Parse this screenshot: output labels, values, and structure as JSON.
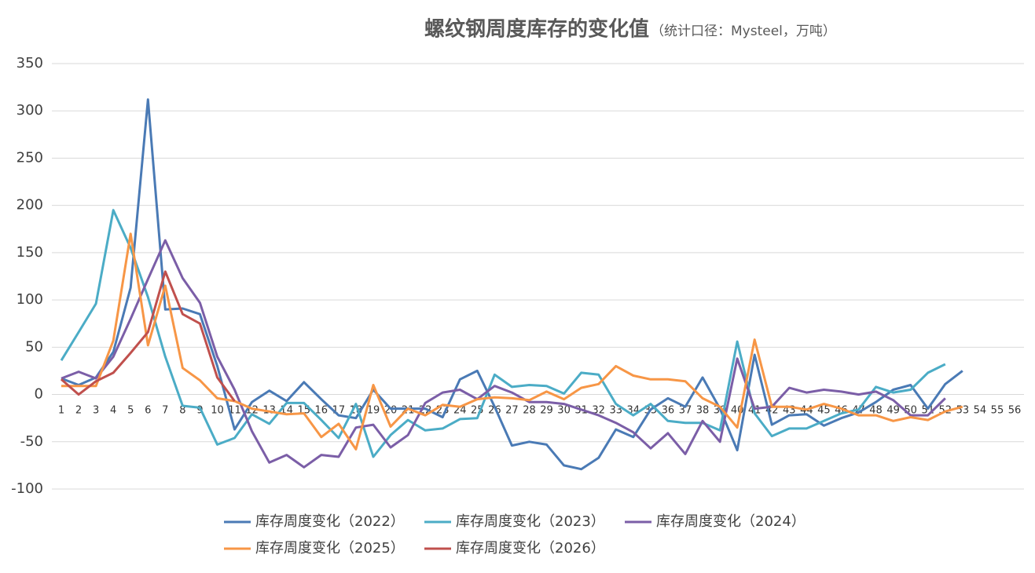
{
  "chart_data": {
    "type": "line",
    "title": "螺纹钢周度库存的变化值",
    "subtitle": "（统计口径：Mysteel，万吨）",
    "categories": [
      "1",
      "2",
      "3",
      "4",
      "5",
      "6",
      "7",
      "8",
      "9",
      "10",
      "11",
      "12",
      "13",
      "14",
      "15",
      "16",
      "17",
      "18",
      "19",
      "20",
      "21",
      "22",
      "23",
      "24",
      "25",
      "26",
      "27",
      "28",
      "29",
      "30",
      "31",
      "32",
      "33",
      "34",
      "35",
      "36",
      "37",
      "38",
      "39",
      "40",
      "41",
      "42",
      "43",
      "44",
      "45",
      "46",
      "47",
      "48",
      "49",
      "50",
      "51",
      "52",
      "53",
      "54",
      "55",
      "56"
    ],
    "ylim": [
      -100,
      350
    ],
    "yticks": [
      -100,
      -50,
      0,
      50,
      100,
      150,
      200,
      250,
      300,
      350
    ],
    "grid": true,
    "series": [
      {
        "name": "库存周度变化（2022）",
        "color": "#4a7ab5",
        "values": [
          17,
          10,
          18,
          45,
          113,
          312,
          90,
          91,
          85,
          30,
          -37,
          -8,
          4,
          -7,
          13,
          -5,
          -22,
          -25,
          5,
          -15,
          -15,
          -15,
          -24,
          16,
          25,
          -13,
          -54,
          -50,
          -53,
          -75,
          -79,
          -67,
          -37,
          -45,
          -16,
          -4,
          -13,
          18,
          -15,
          -59,
          42,
          -32,
          -22,
          -21,
          -33,
          -25,
          -19,
          -8,
          5,
          10,
          -15,
          11,
          25,
          null,
          null,
          null
        ]
      },
      {
        "name": "库存周度变化（2023）",
        "color": "#4bacc6",
        "values": [
          36,
          66,
          96,
          195,
          155,
          103,
          40,
          -12,
          -14,
          -53,
          -46,
          -21,
          -31,
          -9,
          -9,
          -27,
          -46,
          -10,
          -66,
          -43,
          -27,
          -38,
          -36,
          -26,
          -25,
          21,
          8,
          10,
          9,
          1,
          23,
          21,
          -10,
          -22,
          -10,
          -28,
          -30,
          -30,
          -38,
          56,
          -20,
          -44,
          -36,
          -36,
          -28,
          -20,
          -16,
          8,
          2,
          5,
          23,
          32,
          null,
          null,
          null,
          null
        ]
      },
      {
        "name": "库存周度变化（2024）",
        "color": "#7b5ea7",
        "values": [
          17,
          24,
          17,
          40,
          80,
          122,
          163,
          123,
          97,
          40,
          5,
          -39,
          -72,
          -64,
          -77,
          -64,
          -66,
          -35,
          -32,
          -56,
          -43,
          -9,
          2,
          5,
          -5,
          9,
          2,
          -8,
          -8,
          -10,
          -16,
          -22,
          -30,
          -40,
          -57,
          -41,
          -63,
          -28,
          -50,
          38,
          -15,
          -13,
          7,
          2,
          5,
          3,
          0,
          3,
          -6,
          -22,
          -22,
          -4,
          null,
          null,
          null,
          null
        ]
      },
      {
        "name": "库存周度变化（2025）",
        "color": "#f79646",
        "values": [
          9,
          9,
          9,
          57,
          170,
          52,
          115,
          28,
          15,
          -4,
          -7,
          -15,
          -18,
          -21,
          -20,
          -45,
          -31,
          -58,
          10,
          -34,
          -15,
          -22,
          -11,
          -13,
          -5,
          -3,
          -4,
          -6,
          3,
          -5,
          7,
          11,
          30,
          20,
          16,
          16,
          14,
          -4,
          -13,
          -35,
          58,
          -13,
          -13,
          -16,
          -10,
          -15,
          -22,
          -22,
          -28,
          -24,
          -27,
          -18,
          -13,
          null,
          null,
          null
        ]
      },
      {
        "name": "库存周度变化（2026）",
        "color": "#c0504d",
        "values": [
          16,
          0,
          14,
          23,
          44,
          66,
          130,
          85,
          75,
          18,
          -7,
          null,
          null,
          null,
          null,
          null,
          null,
          null,
          null,
          null,
          null,
          null,
          null,
          null,
          null,
          null,
          null,
          null,
          null,
          null,
          null,
          null,
          null,
          null,
          null,
          null,
          null,
          null,
          null,
          null,
          null,
          null,
          null,
          null,
          null,
          null,
          null,
          null,
          null,
          null,
          null,
          null,
          null,
          null,
          null,
          null
        ]
      }
    ]
  }
}
